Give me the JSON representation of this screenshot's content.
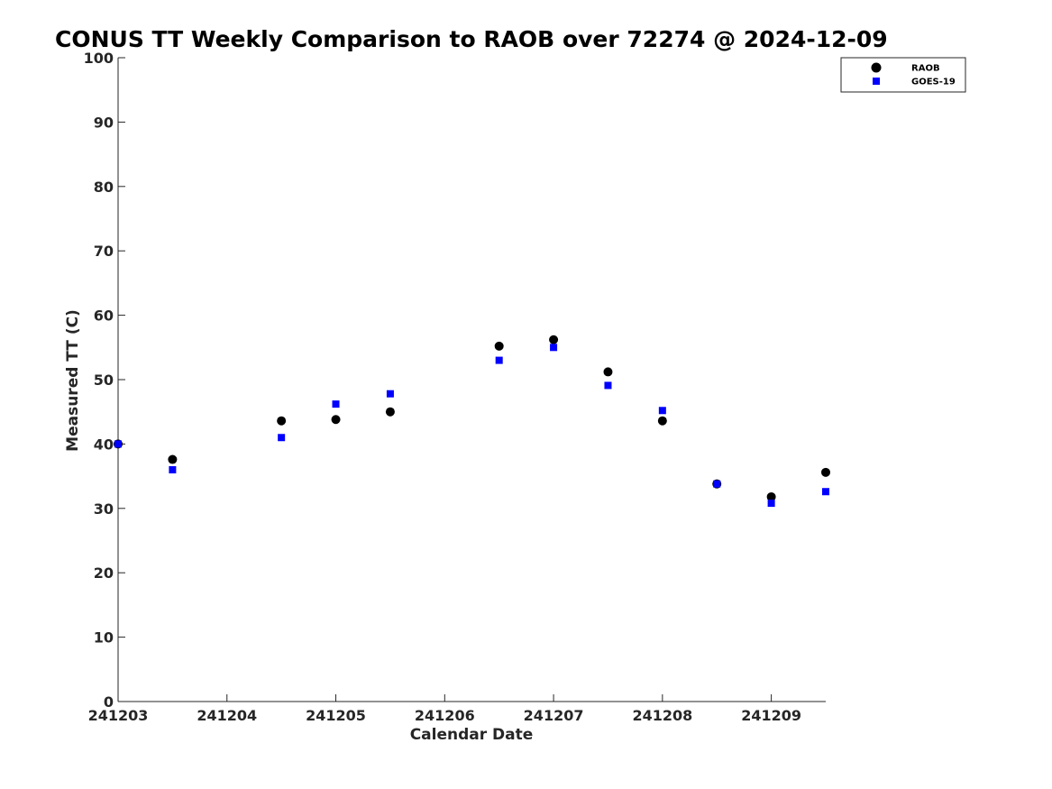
{
  "chart_data": {
    "type": "scatter",
    "title": "CONUS TT Weekly Comparison to RAOB over 72274 @ 2024-12-09",
    "xlabel": "Calendar Date",
    "ylabel": "Measured TT (C)",
    "x_ticks": [
      "241203",
      "241204",
      "241205",
      "241206",
      "241207",
      "241208",
      "241209"
    ],
    "y_ticks": [
      "0",
      "10",
      "20",
      "30",
      "40",
      "50",
      "60",
      "70",
      "80",
      "90",
      "100"
    ],
    "xlim": [
      "241203",
      "241209 12Z"
    ],
    "ylim": [
      0,
      100
    ],
    "grid": false,
    "legend_position": "top-right",
    "series": [
      {
        "name": "RAOB",
        "marker": "circle",
        "color": "#000000",
        "points": [
          {
            "x": "241203 00Z",
            "y": 40.0
          },
          {
            "x": "241203 12Z",
            "y": 37.6
          },
          {
            "x": "241204 12Z",
            "y": 43.6
          },
          {
            "x": "241205 00Z",
            "y": 43.8
          },
          {
            "x": "241205 12Z",
            "y": 45.0
          },
          {
            "x": "241206 12Z",
            "y": 55.2
          },
          {
            "x": "241207 00Z",
            "y": 56.2
          },
          {
            "x": "241207 12Z",
            "y": 51.2
          },
          {
            "x": "241208 00Z",
            "y": 43.6
          },
          {
            "x": "241208 12Z",
            "y": 33.8
          },
          {
            "x": "241209 00Z",
            "y": 31.8
          },
          {
            "x": "241209 12Z",
            "y": 35.6
          }
        ]
      },
      {
        "name": "GOES-19",
        "marker": "square",
        "color": "#0000ff",
        "points": [
          {
            "x": "241203 00Z",
            "y": 40.0
          },
          {
            "x": "241203 12Z",
            "y": 36.0
          },
          {
            "x": "241204 12Z",
            "y": 41.0
          },
          {
            "x": "241205 00Z",
            "y": 46.2
          },
          {
            "x": "241205 12Z",
            "y": 47.8
          },
          {
            "x": "241206 12Z",
            "y": 53.0
          },
          {
            "x": "241207 00Z",
            "y": 55.0
          },
          {
            "x": "241207 12Z",
            "y": 49.1
          },
          {
            "x": "241208 00Z",
            "y": 45.2
          },
          {
            "x": "241208 12Z",
            "y": 33.8
          },
          {
            "x": "241209 00Z",
            "y": 30.8
          },
          {
            "x": "241209 12Z",
            "y": 32.6
          }
        ]
      }
    ]
  }
}
